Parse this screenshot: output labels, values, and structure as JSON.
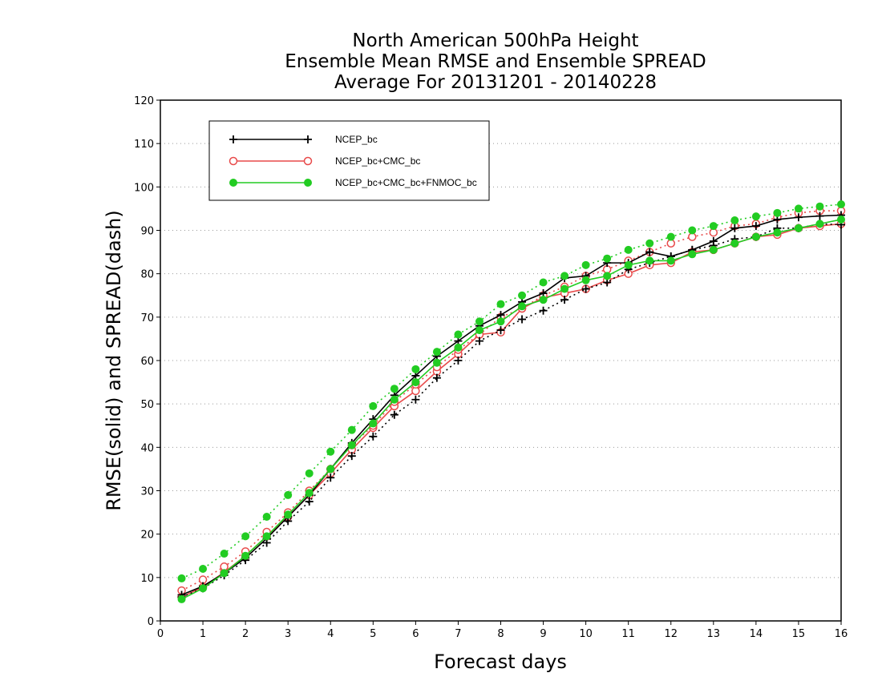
{
  "chart_data": {
    "type": "line",
    "title_lines": [
      "North American 500hPa Height",
      "Ensemble Mean RMSE and Ensemble SPREAD",
      "Average For 20131201 - 20140228"
    ],
    "xlabel": "Forecast days",
    "ylabel": "RMSE(solid) and SPREAD(dash)",
    "xlim": [
      0,
      16
    ],
    "ylim": [
      0,
      120
    ],
    "x_ticks": [
      0,
      1,
      2,
      3,
      4,
      5,
      6,
      7,
      8,
      9,
      10,
      11,
      12,
      13,
      14,
      15,
      16
    ],
    "y_ticks": [
      0,
      10,
      20,
      30,
      40,
      50,
      60,
      70,
      80,
      90,
      100,
      110,
      120
    ],
    "grid": true,
    "legend_position": "top-left",
    "x": [
      0.5,
      1,
      1.5,
      2,
      2.5,
      3,
      3.5,
      4,
      4.5,
      5,
      5.5,
      6,
      6.5,
      7,
      7.5,
      8,
      8.5,
      9,
      9.5,
      10,
      10.5,
      11,
      11.5,
      12,
      12.5,
      13,
      13.5,
      14,
      14.5,
      15,
      15.5,
      16
    ],
    "series": [
      {
        "name": "NCEP_bc",
        "color": "#000000",
        "marker": "plus",
        "rmse": [
          6.0,
          8.0,
          11.0,
          14.5,
          19.0,
          24.0,
          29.0,
          35.0,
          41.0,
          46.5,
          52.0,
          56.5,
          61.0,
          64.5,
          68.0,
          70.5,
          73.5,
          75.5,
          79.0,
          79.5,
          82.5,
          82.5,
          85.0,
          84.0,
          85.5,
          87.5,
          90.5,
          91.0,
          92.5,
          93.0,
          93.3,
          93.5
        ],
        "spread": [
          5.5,
          7.5,
          10.5,
          14.0,
          18.0,
          23.0,
          27.5,
          33.0,
          38.0,
          42.5,
          47.5,
          51.0,
          56.0,
          60.0,
          64.5,
          67.0,
          69.5,
          71.5,
          74.0,
          76.5,
          78.0,
          81.0,
          82.5,
          84.0,
          85.5,
          86.5,
          88.0,
          88.5,
          90.5,
          90.5,
          91.5,
          91.3
        ]
      },
      {
        "name": "NCEP_bc+CMC_bc",
        "color": "#e84a4a",
        "marker": "open-circle",
        "rmse": [
          5.5,
          7.8,
          11.2,
          15.0,
          19.5,
          24.0,
          29.0,
          34.0,
          39.5,
          44.5,
          49.5,
          53.0,
          57.5,
          61.5,
          66.0,
          66.5,
          72.0,
          74.5,
          75.5,
          76.5,
          78.5,
          80.0,
          82.0,
          82.5,
          85.0,
          85.5,
          87.0,
          88.5,
          89.0,
          90.5,
          91.0,
          91.5
        ],
        "spread": [
          7.0,
          9.5,
          12.5,
          16.0,
          20.5,
          25.0,
          30.0,
          35.0,
          40.5,
          45.0,
          50.5,
          54.5,
          58.5,
          62.5,
          66.0,
          70.0,
          72.0,
          75.0,
          77.0,
          79.5,
          81.0,
          83.0,
          85.0,
          87.0,
          88.5,
          89.5,
          91.0,
          91.5,
          93.0,
          94.0,
          94.5,
          94.5
        ]
      },
      {
        "name": "NCEP_bc+CMC_bc+FNMOC_bc",
        "color": "#22cc22",
        "marker": "filled-circle",
        "rmse": [
          5.0,
          7.5,
          11.0,
          15.0,
          19.5,
          24.5,
          29.5,
          35.0,
          40.5,
          45.5,
          51.0,
          55.0,
          59.5,
          63.0,
          67.0,
          69.0,
          72.5,
          74.0,
          76.5,
          78.5,
          79.5,
          82.0,
          83.0,
          83.0,
          84.5,
          85.5,
          87.0,
          88.5,
          89.5,
          90.5,
          91.5,
          92.5
        ],
        "spread": [
          9.8,
          12.0,
          15.5,
          19.5,
          24.0,
          29.0,
          34.0,
          39.0,
          44.0,
          49.5,
          53.5,
          58.0,
          62.0,
          66.0,
          69.0,
          73.0,
          75.0,
          78.0,
          79.5,
          82.0,
          83.5,
          85.5,
          87.0,
          88.5,
          90.0,
          91.0,
          92.3,
          93.2,
          94.0,
          95.0,
          95.5,
          96.0
        ]
      }
    ]
  }
}
